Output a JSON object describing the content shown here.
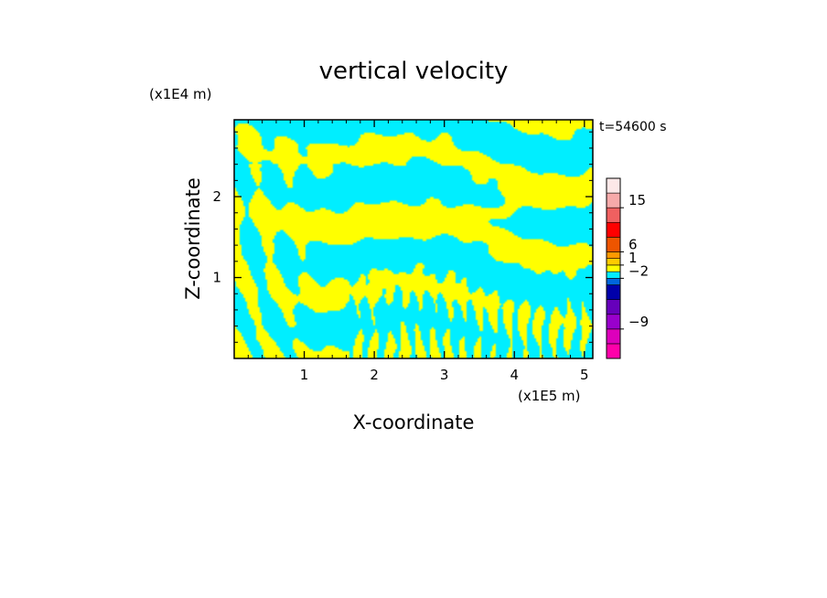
{
  "chart_data": {
    "type": "heatmap",
    "title": "vertical velocity",
    "xlabel": "X-coordinate",
    "ylabel": "Z-coordinate",
    "x_unit": "(x1E5 m)",
    "y_unit": "(x1E4 m)",
    "time_label": "t=54600 s",
    "xlim": [
      0,
      5.12
    ],
    "ylim": [
      0,
      2.95
    ],
    "x_ticks": [
      1,
      2,
      3,
      4,
      5
    ],
    "y_ticks": [
      1,
      2
    ],
    "colors": {
      "positive": "#ffff00",
      "negative": "#00eeff",
      "frame": "#000000"
    },
    "colorbar": {
      "levels": [
        {
          "color": "#ff00aa"
        },
        {
          "color": "#dd00bb"
        },
        {
          "color": "#9900cc"
        },
        {
          "color": "#6600bb"
        },
        {
          "color": "#0000aa"
        },
        {
          "color": "#0066dd"
        },
        {
          "color": "#00eeff"
        },
        {
          "color": "#ffff00"
        },
        {
          "color": "#ffcc00"
        },
        {
          "color": "#ff9900"
        },
        {
          "color": "#ee5500"
        },
        {
          "color": "#ff0000"
        },
        {
          "color": "#f06060"
        },
        {
          "color": "#f7aaaa"
        },
        {
          "color": "#fde8e8"
        }
      ],
      "labels": [
        {
          "text": "15",
          "level": 13
        },
        {
          "text": "6",
          "level": 10
        },
        {
          "text": "1",
          "level": 8
        },
        {
          "text": "−2",
          "level": 6
        },
        {
          "text": "−9",
          "level": 2
        }
      ]
    }
  }
}
